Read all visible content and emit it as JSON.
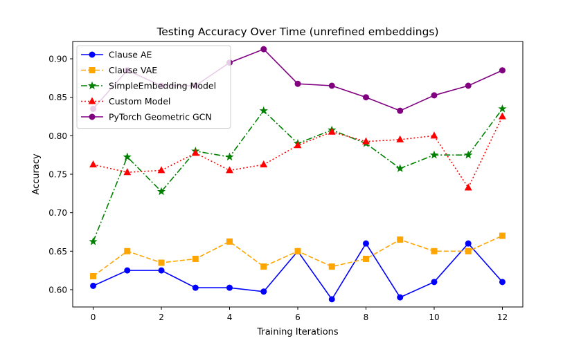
{
  "chart_data": {
    "type": "line",
    "title": "Testing Accuracy Over Time (unrefined embeddings)",
    "xlabel": "Training Iterations",
    "ylabel": "Accuracy",
    "xlim": [
      -0.6,
      12.6
    ],
    "ylim": [
      0.5775,
      0.9225
    ],
    "xticks": [
      0,
      2,
      4,
      6,
      8,
      10,
      12
    ],
    "yticks": [
      0.6,
      0.65,
      0.7,
      0.75,
      0.8,
      0.85,
      0.9
    ],
    "ytick_labels": [
      "0.60",
      "0.65",
      "0.70",
      "0.75",
      "0.80",
      "0.85",
      "0.90"
    ],
    "grid": false,
    "legend_position": "top-left",
    "x": [
      0,
      1,
      2,
      3,
      4,
      5,
      6,
      7,
      8,
      9,
      10,
      11,
      12
    ],
    "series": [
      {
        "name": "Clause AE",
        "color": "#0000ff",
        "marker": "circle",
        "linestyle": "solid",
        "values": [
          0.605,
          0.625,
          0.625,
          0.6025,
          0.6025,
          0.5975,
          0.65,
          0.5875,
          0.66,
          0.59,
          0.61,
          0.66,
          0.61
        ]
      },
      {
        "name": "Clause VAE",
        "color": "#ffa500",
        "marker": "square",
        "linestyle": "dashed",
        "values": [
          0.6175,
          0.65,
          0.635,
          0.64,
          0.6625,
          0.63,
          0.65,
          0.63,
          0.64,
          0.665,
          0.65,
          0.65,
          0.67
        ]
      },
      {
        "name": "SimpleEmbedding Model",
        "color": "#008000",
        "marker": "star",
        "linestyle": "dashdot",
        "values": [
          0.6625,
          0.7725,
          0.7275,
          0.78,
          0.7725,
          0.8325,
          0.79,
          0.8075,
          0.79,
          0.7575,
          0.775,
          0.775,
          0.835
        ]
      },
      {
        "name": "Custom Model",
        "color": "#ff0000",
        "marker": "triangle",
        "linestyle": "dotted",
        "values": [
          0.7625,
          0.7525,
          0.755,
          0.7775,
          0.755,
          0.7625,
          0.7875,
          0.805,
          0.7925,
          0.795,
          0.8,
          0.7325,
          0.825
        ]
      },
      {
        "name": "PyTorch Geometric GCN",
        "color": "#800080",
        "marker": "circle",
        "linestyle": "solid",
        "values": [
          0.835,
          0.885,
          0.865,
          0.865,
          0.895,
          0.9125,
          0.8675,
          0.865,
          0.85,
          0.8325,
          0.8525,
          0.865,
          0.885
        ]
      }
    ]
  }
}
